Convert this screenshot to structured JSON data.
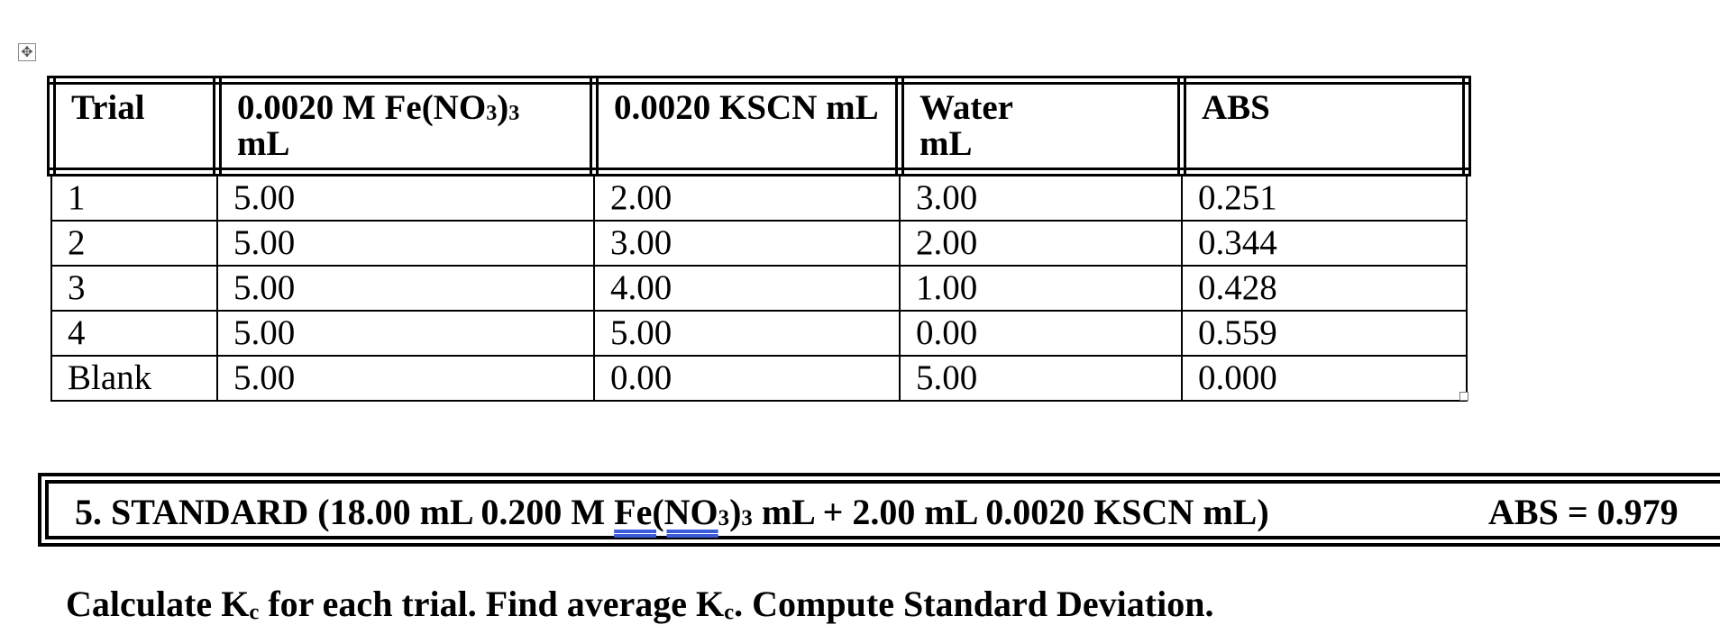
{
  "table": {
    "headers": {
      "trial": "Trial",
      "fe_main": "0.0020 M Fe(NO",
      "fe_sub1": "3",
      "fe_close": ")",
      "fe_sub2": "3",
      "fe_unit": "mL",
      "kscn": "0.0020 KSCN mL",
      "water": "Water",
      "water_unit": "mL",
      "abs": "ABS"
    },
    "rows": [
      {
        "trial": "1",
        "fe": "5.00",
        "kscn": "2.00",
        "water": "3.00",
        "abs": "0.251"
      },
      {
        "trial": "2",
        "fe": "5.00",
        "kscn": "3.00",
        "water": "2.00",
        "abs": "0.344"
      },
      {
        "trial": "3",
        "fe": "5.00",
        "kscn": "4.00",
        "water": "1.00",
        "abs": "0.428"
      },
      {
        "trial": "4",
        "fe": "5.00",
        "kscn": "5.00",
        "water": "0.00",
        "abs": "0.559"
      },
      {
        "trial": "Blank",
        "fe": "5.00",
        "kscn": "0.00",
        "water": "5.00",
        "abs": "0.000"
      }
    ]
  },
  "standard": {
    "prefix": "5. STANDARD (18.00 mL 0.200 M ",
    "fe_word": "Fe",
    "chem_open": "(NO",
    "sub1": "3",
    "close": ")",
    "sub2": "3",
    "suffix": " mL + 2.00 mL 0.0020 KSCN mL)",
    "abs": "ABS = 0.979"
  },
  "instruction": {
    "part1": "Calculate K",
    "sub1": "c",
    "part2": " for each trial. Find average K",
    "sub2": "c",
    "part3": ". Compute Standard Deviation."
  },
  "icons": {
    "move_handle": "table-move-handle-icon",
    "resize_handle": "table-resize-handle-icon"
  }
}
